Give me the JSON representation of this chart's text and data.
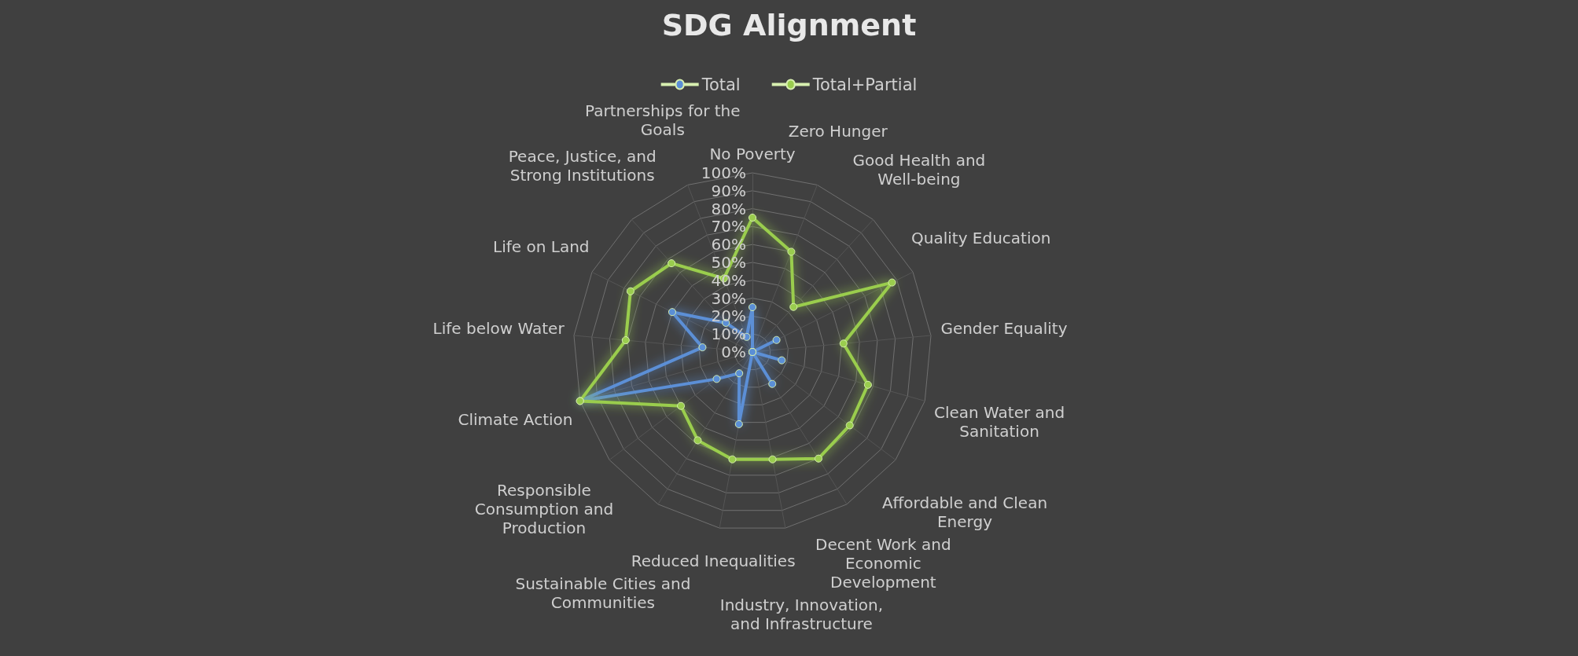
{
  "chart_data": {
    "type": "radar",
    "title": "SDG Alignment",
    "categories": [
      "No Poverty",
      "Zero Hunger",
      "Good Health and Well-being",
      "Quality Education",
      "Gender Equality",
      "Clean Water and Sanitation",
      "Affordable and Clean Energy",
      "Decent Work and Economic Development",
      "Industry, Innovation, and Infrastructure",
      "Reduced Inequalities",
      "Sustainable Cities and Communities",
      "Responsible Consumption and Production",
      "Climate Action",
      "Life below Water",
      "Life on Land",
      "Peace, Justice, and Strong Institutions",
      "Partnerships for the Goals"
    ],
    "series": [
      {
        "name": "Total",
        "color": "#5b8fd6",
        "values": [
          25,
          0,
          0,
          15,
          0,
          17,
          0,
          21,
          0,
          41,
          14,
          25,
          100,
          28,
          50,
          22,
          9
        ]
      },
      {
        "name": "Total+Partial",
        "color": "#9acd4e",
        "values": [
          75,
          60,
          34,
          87,
          51,
          67,
          68,
          70,
          61,
          61,
          58,
          50,
          100,
          71,
          76,
          67,
          44
        ]
      }
    ],
    "ylim": [
      0,
      100
    ],
    "yticks": [
      {
        "value": 0,
        "label": "0%"
      },
      {
        "value": 10,
        "label": "10%"
      },
      {
        "value": 20,
        "label": "20%"
      },
      {
        "value": 30,
        "label": "30%"
      },
      {
        "value": 40,
        "label": "40%"
      },
      {
        "value": 50,
        "label": "50%"
      },
      {
        "value": 60,
        "label": "60%"
      },
      {
        "value": 70,
        "label": "70%"
      },
      {
        "value": 80,
        "label": "80%"
      },
      {
        "value": 90,
        "label": "90%"
      },
      {
        "value": 100,
        "label": "100%"
      }
    ],
    "grid": true,
    "legend": "top",
    "marker": "circle",
    "line_style": "solid"
  }
}
